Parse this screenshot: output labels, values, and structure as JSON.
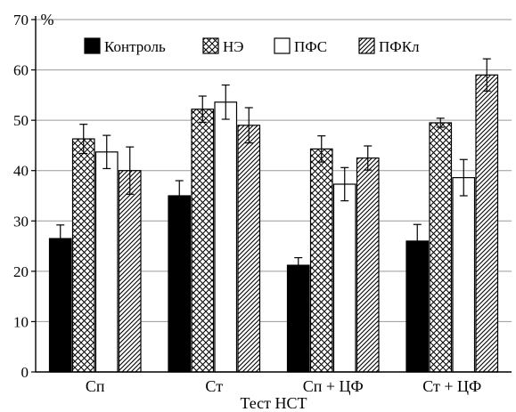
{
  "chart_data": {
    "type": "bar",
    "title": "",
    "ylabel": "%",
    "xlabel": "Тест НСТ",
    "categories": [
      "Сп",
      "Ст",
      "Сп + ЦФ",
      "Ст + ЦФ"
    ],
    "ylim": [
      0,
      70
    ],
    "yticks": [
      0,
      10,
      20,
      30,
      40,
      50,
      60,
      70
    ],
    "grid": true,
    "legend_position": "top",
    "series": [
      {
        "name": "Контроль",
        "pattern": "solid",
        "color": "#000000",
        "values": [
          26.5,
          35.0,
          21.2,
          26.0
        ],
        "errors": [
          2.7,
          3.0,
          1.5,
          3.3
        ]
      },
      {
        "name": "НЭ",
        "pattern": "crosshatch",
        "color": "#000000",
        "values": [
          46.3,
          52.2,
          44.3,
          49.5
        ],
        "errors": [
          2.9,
          2.6,
          2.6,
          0.9
        ]
      },
      {
        "name": "ПФС",
        "pattern": "open",
        "color": "#000000",
        "values": [
          43.7,
          53.6,
          37.3,
          38.6
        ],
        "errors": [
          3.3,
          3.4,
          3.3,
          3.6
        ]
      },
      {
        "name": "ПФКл",
        "pattern": "diagonal",
        "color": "#000000",
        "values": [
          40.0,
          49.0,
          42.5,
          59.0
        ],
        "errors": [
          4.7,
          3.5,
          2.4,
          3.2
        ]
      }
    ]
  }
}
